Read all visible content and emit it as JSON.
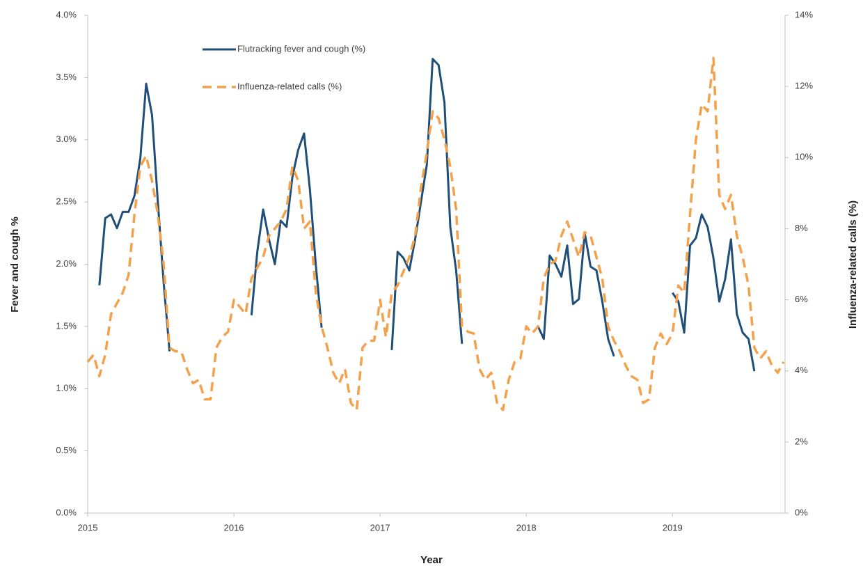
{
  "chart_data": {
    "type": "line",
    "xlabel": "Year",
    "ylabel": "Fever and cough %",
    "y2label": "Influenza-related calls (%)",
    "legend": "top-left",
    "x": [
      2015,
      2015.04,
      2015.08,
      2015.12,
      2015.16,
      2015.2,
      2015.24,
      2015.28,
      2015.32,
      2015.36,
      2015.4,
      2015.44,
      2015.48,
      2015.52,
      2015.56,
      2015.6,
      2015.64,
      2015.68,
      2015.72,
      2015.76,
      2015.8,
      2015.84,
      2015.88,
      2015.92,
      2015.96,
      2016,
      2016.04,
      2016.08,
      2016.12,
      2016.16,
      2016.2,
      2016.24,
      2016.28,
      2016.32,
      2016.36,
      2016.4,
      2016.44,
      2016.48,
      2016.52,
      2016.56,
      2016.6,
      2016.64,
      2016.68,
      2016.72,
      2016.76,
      2016.8,
      2016.84,
      2016.88,
      2016.92,
      2016.96,
      2017,
      2017.04,
      2017.08,
      2017.12,
      2017.16,
      2017.2,
      2017.24,
      2017.28,
      2017.32,
      2017.36,
      2017.4,
      2017.44,
      2017.48,
      2017.52,
      2017.56,
      2017.6,
      2017.64,
      2017.68,
      2017.72,
      2017.76,
      2017.8,
      2017.84,
      2017.88,
      2017.92,
      2017.96,
      2018,
      2018.04,
      2018.08,
      2018.12,
      2018.16,
      2018.2,
      2018.24,
      2018.28,
      2018.32,
      2018.36,
      2018.4,
      2018.44,
      2018.48,
      2018.52,
      2018.56,
      2018.6,
      2018.64,
      2018.68,
      2018.72,
      2018.76,
      2018.8,
      2018.84,
      2018.88,
      2018.92,
      2018.96,
      2019,
      2019.04,
      2019.08,
      2019.12,
      2019.16,
      2019.2,
      2019.24,
      2019.28,
      2019.32,
      2019.36,
      2019.4,
      2019.44,
      2019.48,
      2019.52,
      2019.56,
      2019.6,
      2019.64,
      2019.68,
      2019.72,
      2019.76
    ],
    "series": [
      {
        "name": "Flutracking fever and cough (%)",
        "color": "#1f4e79",
        "axis": "y",
        "dash": false,
        "values": [
          null,
          null,
          1.83,
          2.37,
          2.4,
          2.29,
          2.42,
          2.42,
          2.55,
          2.85,
          3.45,
          3.2,
          2.5,
          1.85,
          1.3,
          null,
          null,
          null,
          null,
          null,
          null,
          null,
          null,
          null,
          null,
          null,
          null,
          null,
          1.59,
          2.1,
          2.44,
          2.2,
          2.0,
          2.35,
          2.3,
          2.7,
          2.92,
          3.05,
          2.6,
          2.0,
          1.49,
          null,
          null,
          null,
          null,
          null,
          null,
          null,
          null,
          null,
          null,
          null,
          1.31,
          2.1,
          2.05,
          1.95,
          2.2,
          2.5,
          2.8,
          3.65,
          3.6,
          3.3,
          2.3,
          1.95,
          1.36,
          null,
          null,
          null,
          null,
          null,
          null,
          null,
          null,
          null,
          null,
          null,
          null,
          1.5,
          1.4,
          2.07,
          2.0,
          1.9,
          2.15,
          1.68,
          1.72,
          2.25,
          1.98,
          1.95,
          1.7,
          1.4,
          1.26,
          null,
          null,
          null,
          null,
          null,
          null,
          null,
          null,
          null,
          1.77,
          1.7,
          1.45,
          2.15,
          2.21,
          2.4,
          2.3,
          2.05,
          1.7,
          1.88,
          2.2,
          1.6,
          1.45,
          1.4,
          1.14,
          null,
          null,
          null,
          null,
          null
        ]
      },
      {
        "name": "Influenza-related calls (%)",
        "color": "#f4a14b",
        "axis": "y2",
        "dash": true,
        "values": [
          4.25,
          4.45,
          3.85,
          4.45,
          5.6,
          5.9,
          6.2,
          6.7,
          8.4,
          9.75,
          10.05,
          9.35,
          8.4,
          7.0,
          4.65,
          4.55,
          4.55,
          4.05,
          3.65,
          3.75,
          3.2,
          3.2,
          4.65,
          4.95,
          5.1,
          6.0,
          5.8,
          5.6,
          6.6,
          6.9,
          7.2,
          7.8,
          8.0,
          8.2,
          8.55,
          9.75,
          9.35,
          8.0,
          8.2,
          6.2,
          5.25,
          4.65,
          3.95,
          3.65,
          4.05,
          3.1,
          2.9,
          4.65,
          4.85,
          4.85,
          6.0,
          4.95,
          6.2,
          6.4,
          6.8,
          7.2,
          7.8,
          9.15,
          10.15,
          11.3,
          11.1,
          10.5,
          9.75,
          8.55,
          5.25,
          5.1,
          5.05,
          4.05,
          3.75,
          3.95,
          3.1,
          2.9,
          3.75,
          4.25,
          4.35,
          5.25,
          5.05,
          5.25,
          6.6,
          7.0,
          7.1,
          7.8,
          8.2,
          7.7,
          7.2,
          7.9,
          7.8,
          7.2,
          6.6,
          5.25,
          4.85,
          4.55,
          4.15,
          3.85,
          3.75,
          3.1,
          3.2,
          4.65,
          5.05,
          4.75,
          5.05,
          6.4,
          6.2,
          8.4,
          10.5,
          11.5,
          11.3,
          12.8,
          8.95,
          8.55,
          8.95,
          7.8,
          7.2,
          6.4,
          4.65,
          4.35,
          4.55,
          4.15,
          3.95,
          4.25
        ]
      }
    ],
    "xlim": [
      2015,
      2019.77
    ],
    "xticks": [
      2015,
      2016,
      2017,
      2018,
      2019
    ],
    "ylim": [
      0,
      4
    ],
    "yticks": [
      {
        "value": 0,
        "label": "0.0%"
      },
      {
        "value": 0.5,
        "label": "0.5%"
      },
      {
        "value": 1,
        "label": "1.0%"
      },
      {
        "value": 1.5,
        "label": "1.5%"
      },
      {
        "value": 2,
        "label": "2.0%"
      },
      {
        "value": 2.5,
        "label": "2.5%"
      },
      {
        "value": 3,
        "label": "3.0%"
      },
      {
        "value": 3.5,
        "label": "3.5%"
      },
      {
        "value": 4,
        "label": "4.0%"
      }
    ],
    "y2lim": [
      0,
      14
    ],
    "y2ticks": [
      {
        "value": 0,
        "label": "0%"
      },
      {
        "value": 2,
        "label": "2%"
      },
      {
        "value": 4,
        "label": "4%"
      },
      {
        "value": 6,
        "label": "6%"
      },
      {
        "value": 8,
        "label": "8%"
      },
      {
        "value": 10,
        "label": "10%"
      },
      {
        "value": 12,
        "label": "12%"
      },
      {
        "value": 14,
        "label": "14%"
      }
    ],
    "grid": false
  }
}
